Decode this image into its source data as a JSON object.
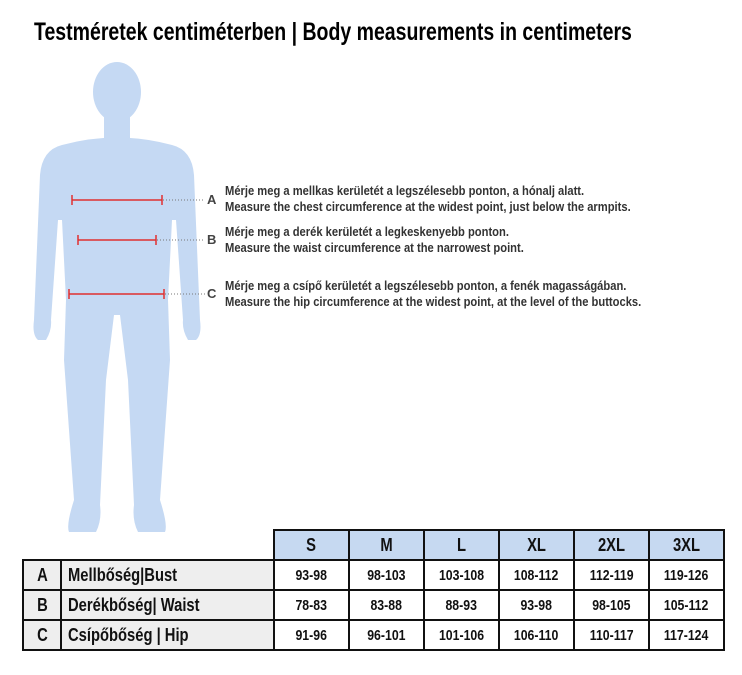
{
  "title": "Testméretek centiméterben | Body measurements in centimeters",
  "colors": {
    "figure": "#c5d9f3",
    "header_bg": "#c6d9f1",
    "label_bg": "#eeeeee",
    "measure_line": "#e03030"
  },
  "measurements": [
    {
      "letter": "A",
      "hu": "Mérje meg a mellkas kerületét a legszélesebb ponton, a hónalj alatt.",
      "en": "Measure the chest circumference at the widest point, just below the armpits."
    },
    {
      "letter": "B",
      "hu": "Mérje meg a derék kerületét a legkeskenyebb ponton.",
      "en": "Measure the waist circumference at the narrowest point."
    },
    {
      "letter": "C",
      "hu": "Mérje meg a csípő kerületét a legszélesebb ponton, a fenék magasságában.",
      "en": "Measure the hip circumference at the widest point, at the level of the buttocks."
    }
  ],
  "table": {
    "sizes": [
      "S",
      "M",
      "L",
      "XL",
      "2XL",
      "3XL"
    ],
    "rows": [
      {
        "letter": "A",
        "label": "Mellbőség|Bust",
        "values": [
          "93-98",
          "98-103",
          "103-108",
          "108-112",
          "112-119",
          "119-126"
        ]
      },
      {
        "letter": "B",
        "label": "Derékbőség| Waist",
        "values": [
          "78-83",
          "83-88",
          "88-93",
          "93-98",
          "98-105",
          "105-112"
        ]
      },
      {
        "letter": "C",
        "label": "Csípőbőség | Hip",
        "values": [
          "91-96",
          "96-101",
          "101-106",
          "106-110",
          "110-117",
          "117-124"
        ]
      }
    ]
  }
}
